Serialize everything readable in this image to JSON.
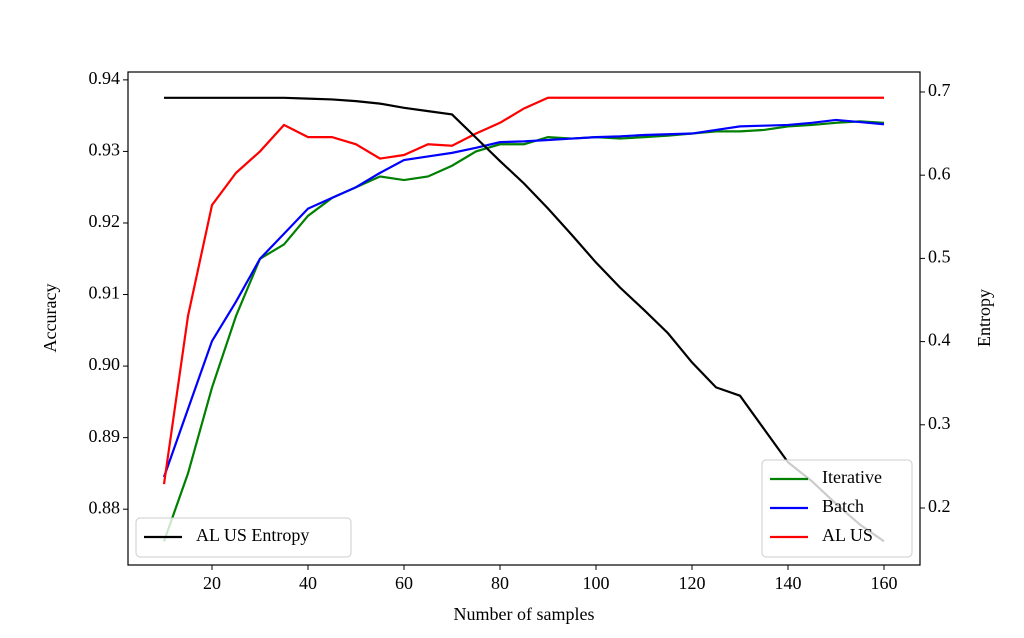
{
  "chart_data": {
    "type": "line",
    "x_label": "Number of samples",
    "y_label": "Accuracy",
    "y2_label": "Entropy",
    "x": [
      10,
      15,
      20,
      25,
      30,
      35,
      40,
      45,
      50,
      55,
      60,
      65,
      70,
      75,
      80,
      85,
      90,
      95,
      100,
      105,
      110,
      115,
      120,
      125,
      130,
      135,
      140,
      145,
      150,
      155,
      160
    ],
    "xlim": [
      2.5,
      167.5
    ],
    "xticks": [
      20,
      40,
      60,
      80,
      100,
      120,
      140,
      160
    ],
    "ylim": [
      0.8722,
      0.9411
    ],
    "yticks": [
      {
        "value": 0.88,
        "label": "0.88"
      },
      {
        "value": 0.89,
        "label": "0.89"
      },
      {
        "value": 0.9,
        "label": "0.90"
      },
      {
        "value": 0.91,
        "label": "0.91"
      },
      {
        "value": 0.92,
        "label": "0.92"
      },
      {
        "value": 0.93,
        "label": "0.93"
      },
      {
        "value": 0.94,
        "label": "0.94"
      }
    ],
    "y2lim": [
      0.1315,
      0.724
    ],
    "y2ticks": [
      0.2,
      0.3,
      0.4,
      0.5,
      0.6,
      0.7
    ],
    "legend": "lower right",
    "legend2": "lower left",
    "series": [
      {
        "name": "Iterative",
        "color": "#008000",
        "axis": "y",
        "values": [
          0.8755,
          0.885,
          0.897,
          0.907,
          0.915,
          0.917,
          0.921,
          0.9235,
          0.925,
          0.9265,
          0.926,
          0.9265,
          0.928,
          0.93,
          0.931,
          0.931,
          0.932,
          0.9318,
          0.932,
          0.9318,
          0.932,
          0.9322,
          0.9325,
          0.9328,
          0.9328,
          0.933,
          0.9335,
          0.9337,
          0.934,
          0.9342,
          0.934
        ]
      },
      {
        "name": "Batch",
        "color": "#0000ff",
        "axis": "y",
        "values": [
          0.8845,
          0.894,
          0.9035,
          0.909,
          0.915,
          0.9185,
          0.922,
          0.9235,
          0.925,
          0.927,
          0.9288,
          0.9293,
          0.9298,
          0.9305,
          0.9313,
          0.9314,
          0.9316,
          0.9318,
          0.932,
          0.9321,
          0.9323,
          0.9324,
          0.9325,
          0.933,
          0.9335,
          0.9336,
          0.9337,
          0.934,
          0.9344,
          0.9341,
          0.9338
        ]
      },
      {
        "name": "AL US",
        "color": "#ff0000",
        "axis": "y",
        "values": [
          0.8835,
          0.907,
          0.9225,
          0.927,
          0.93,
          0.9337,
          0.932,
          0.932,
          0.931,
          0.929,
          0.9295,
          0.931,
          0.9308,
          0.9325,
          0.934,
          0.936,
          0.9375,
          0.9375,
          0.9375,
          0.9375,
          0.9375,
          0.9375,
          0.9375,
          0.9375,
          0.9375,
          0.9375,
          0.9375,
          0.9375,
          0.9375,
          0.9375,
          0.9375
        ]
      },
      {
        "name": "AL US Entropy",
        "color": "#000000",
        "axis": "y2",
        "values": [
          0.693,
          0.693,
          0.693,
          0.693,
          0.693,
          0.693,
          0.692,
          0.691,
          0.689,
          0.686,
          0.681,
          0.677,
          0.673,
          0.645,
          0.617,
          0.59,
          0.56,
          0.528,
          0.495,
          0.465,
          0.438,
          0.41,
          0.375,
          0.345,
          0.335,
          0.295,
          0.255,
          0.232,
          0.205,
          0.18,
          0.16
        ]
      }
    ]
  }
}
